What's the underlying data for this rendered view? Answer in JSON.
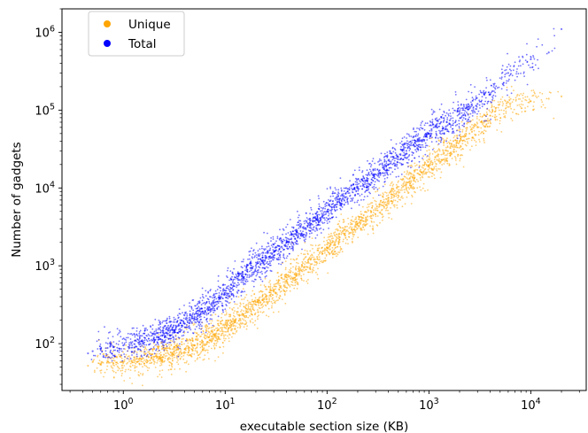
{
  "chart_data": {
    "type": "scatter",
    "title": "",
    "xlabel": "executable section size (KB)",
    "ylabel": "Number of gadgets",
    "xscale": "log",
    "yscale": "log",
    "xlim": [
      0.25,
      35000
    ],
    "ylim": [
      25,
      2000000
    ],
    "xticks": [
      {
        "value": 1,
        "base": "10",
        "exp": "0"
      },
      {
        "value": 10,
        "base": "10",
        "exp": "1"
      },
      {
        "value": 100,
        "base": "10",
        "exp": "2"
      },
      {
        "value": 1000,
        "base": "10",
        "exp": "3"
      },
      {
        "value": 10000,
        "base": "10",
        "exp": "4"
      }
    ],
    "yticks": [
      {
        "value": 100,
        "base": "10",
        "exp": "2"
      },
      {
        "value": 1000,
        "base": "10",
        "exp": "3"
      },
      {
        "value": 10000,
        "base": "10",
        "exp": "4"
      },
      {
        "value": 100000,
        "base": "10",
        "exp": "5"
      },
      {
        "value": 1000000,
        "base": "10",
        "exp": "6"
      }
    ],
    "grid": false,
    "legend_position": "top-left",
    "series": [
      {
        "name": "Unique",
        "color": "#FFA500",
        "points": [
          [
            0.45,
            52
          ],
          [
            0.5,
            58
          ],
          [
            0.6,
            55
          ],
          [
            0.7,
            60
          ],
          [
            0.8,
            56
          ],
          [
            1.0,
            58
          ],
          [
            1.2,
            60
          ],
          [
            1.5,
            63
          ],
          [
            2.0,
            68
          ],
          [
            2.5,
            72
          ],
          [
            3.0,
            75
          ],
          [
            4.0,
            85
          ],
          [
            5.0,
            95
          ],
          [
            6.0,
            105
          ],
          [
            8.0,
            125
          ],
          [
            10,
            160
          ],
          [
            12,
            190
          ],
          [
            15,
            240
          ],
          [
            20,
            320
          ],
          [
            25,
            400
          ],
          [
            30,
            480
          ],
          [
            40,
            640
          ],
          [
            50,
            800
          ],
          [
            60,
            950
          ],
          [
            80,
            1300
          ],
          [
            100,
            1700
          ],
          [
            120,
            2000
          ],
          [
            150,
            2600
          ],
          [
            200,
            3500
          ],
          [
            250,
            4300
          ],
          [
            300,
            5200
          ],
          [
            400,
            7000
          ],
          [
            500,
            9000
          ],
          [
            600,
            11000
          ],
          [
            800,
            15000
          ],
          [
            1000,
            19000
          ],
          [
            1200,
            23000
          ],
          [
            1500,
            30000
          ],
          [
            2000,
            40000
          ],
          [
            2500,
            50000
          ],
          [
            3000,
            60000
          ],
          [
            4000,
            85000
          ],
          [
            6000,
            110000
          ],
          [
            10000,
            130000
          ],
          [
            15000,
            140000
          ],
          [
            20000,
            150000
          ]
        ]
      },
      {
        "name": "Total",
        "color": "#0000FF",
        "points": [
          [
            0.45,
            75
          ],
          [
            0.5,
            80
          ],
          [
            0.6,
            85
          ],
          [
            0.7,
            88
          ],
          [
            0.8,
            90
          ],
          [
            1.0,
            95
          ],
          [
            1.2,
            100
          ],
          [
            1.5,
            108
          ],
          [
            2.0,
            120
          ],
          [
            2.5,
            135
          ],
          [
            3.0,
            150
          ],
          [
            4.0,
            180
          ],
          [
            5.0,
            220
          ],
          [
            6.0,
            260
          ],
          [
            8.0,
            340
          ],
          [
            10,
            450
          ],
          [
            12,
            560
          ],
          [
            15,
            720
          ],
          [
            20,
            1000
          ],
          [
            25,
            1250
          ],
          [
            30,
            1500
          ],
          [
            40,
            2000
          ],
          [
            50,
            2500
          ],
          [
            60,
            3000
          ],
          [
            80,
            4000
          ],
          [
            100,
            5000
          ],
          [
            120,
            6000
          ],
          [
            150,
            7500
          ],
          [
            200,
            10000
          ],
          [
            250,
            12500
          ],
          [
            300,
            15000
          ],
          [
            400,
            20000
          ],
          [
            500,
            25000
          ],
          [
            600,
            30000
          ],
          [
            800,
            40000
          ],
          [
            1000,
            50000
          ],
          [
            1500,
            70000
          ],
          [
            2000,
            90000
          ],
          [
            3000,
            120000
          ],
          [
            4000,
            160000
          ],
          [
            6000,
            300000
          ],
          [
            10000,
            450000
          ],
          [
            15000,
            550000
          ],
          [
            20000,
            1100000
          ]
        ]
      }
    ]
  }
}
